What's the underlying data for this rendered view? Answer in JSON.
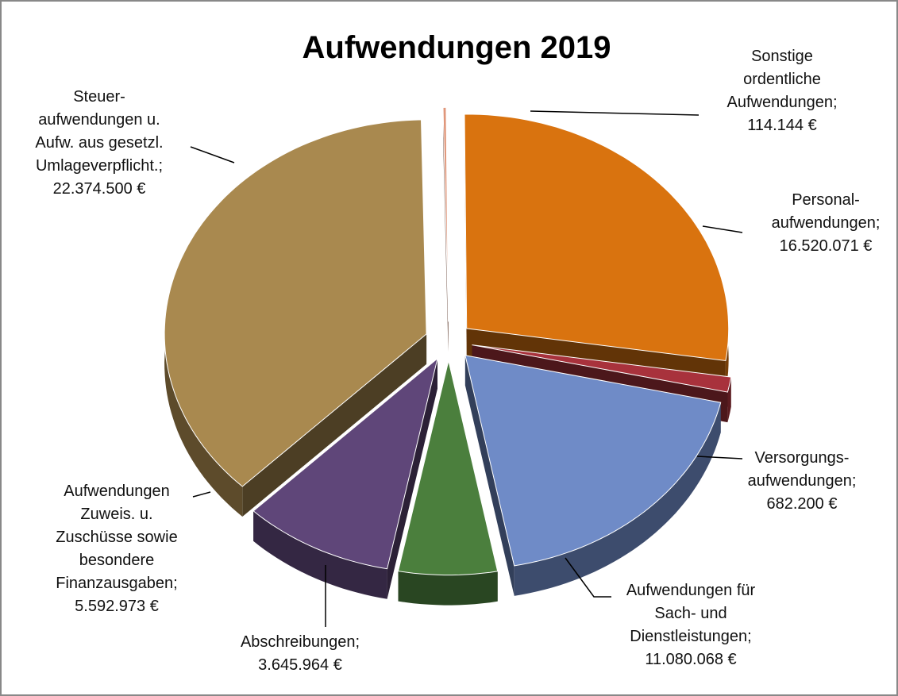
{
  "chart_data": {
    "type": "pie",
    "title": "Aufwendungen 2019",
    "categories": [
      "Sonstige\nordentliche\nAufwendungen",
      "Personal-\naufwendungen",
      "Versorgungs-\naufwendungen",
      "Aufwendungen für\nSach- und\nDienstleistungen",
      "Abschreibungen",
      "Aufwendungen\nZuweis. u.\nZuschüsse sowie\nbesondere\nFinanzausgaben",
      "Steuer-\naufwendungen u.\nAufw. aus gesetzl.\nUmlageverpflicht."
    ],
    "label_separator": ";",
    "values": [
      114144,
      16520071,
      682200,
      11080068,
      3645964,
      5592973,
      22374500
    ],
    "value_labels": [
      "114.144 €",
      "16.520.071 €",
      "682.200 €",
      "11.080.068 €",
      "3.645.964 €",
      "5.592.973 €",
      "22.374.500 €"
    ],
    "colors": [
      "#e0977b",
      "#d9730f",
      "#a8323c",
      "#6f8bc7",
      "#4b7f3d",
      "#5f4679",
      "#a9894f"
    ]
  }
}
